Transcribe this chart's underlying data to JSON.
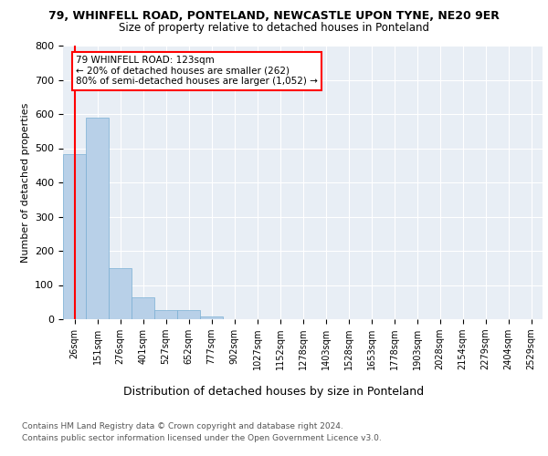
{
  "title_line1": "79, WHINFELL ROAD, PONTELAND, NEWCASTLE UPON TYNE, NE20 9ER",
  "title_line2": "Size of property relative to detached houses in Ponteland",
  "xlabel": "Distribution of detached houses by size in Ponteland",
  "ylabel": "Number of detached properties",
  "bar_labels": [
    "26sqm",
    "151sqm",
    "276sqm",
    "401sqm",
    "527sqm",
    "652sqm",
    "777sqm",
    "902sqm",
    "1027sqm",
    "1152sqm",
    "1278sqm",
    "1403sqm",
    "1528sqm",
    "1653sqm",
    "1778sqm",
    "1903sqm",
    "2028sqm",
    "2154sqm",
    "2279sqm",
    "2404sqm",
    "2529sqm"
  ],
  "bar_heights": [
    484,
    590,
    150,
    63,
    28,
    28,
    8,
    0,
    0,
    0,
    0,
    0,
    0,
    0,
    0,
    0,
    0,
    0,
    0,
    0,
    0
  ],
  "bar_color": "#b8d0e8",
  "bar_edge_color": "#7aafd4",
  "vline_color": "red",
  "annotation_text": "79 WHINFELL ROAD: 123sqm\n← 20% of detached houses are smaller (262)\n80% of semi-detached houses are larger (1,052) →",
  "annotation_box_color": "white",
  "annotation_box_edge": "red",
  "ylim": [
    0,
    800
  ],
  "yticks": [
    0,
    100,
    200,
    300,
    400,
    500,
    600,
    700,
    800
  ],
  "footer_line1": "Contains HM Land Registry data © Crown copyright and database right 2024.",
  "footer_line2": "Contains public sector information licensed under the Open Government Licence v3.0.",
  "plot_bg_color": "#e8eef5"
}
